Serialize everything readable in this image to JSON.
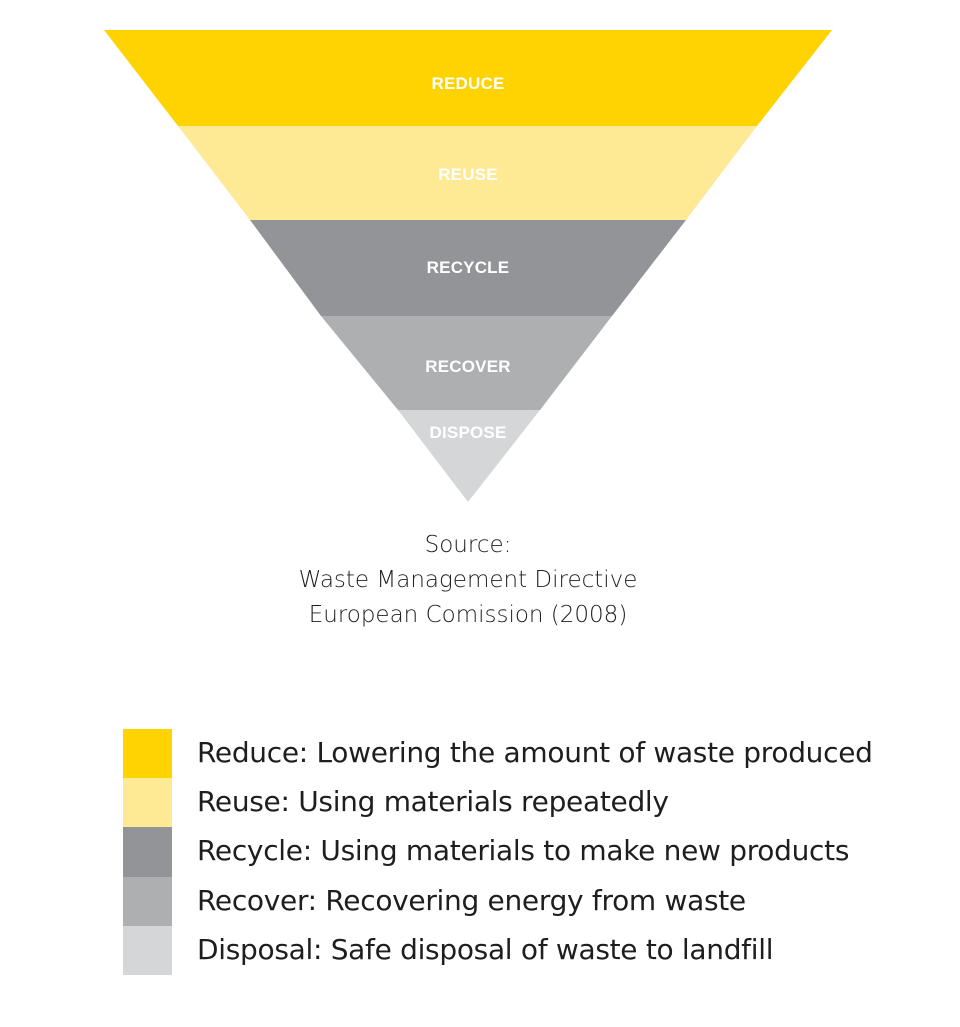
{
  "pyramid": {
    "tiers": [
      {
        "label": "REDUCE",
        "color": "#FFD300"
      },
      {
        "label": "REUSE",
        "color": "#FEE995"
      },
      {
        "label": "RECYCLE",
        "color": "#939497"
      },
      {
        "label": "RECOVER",
        "color": "#AEAFB1"
      },
      {
        "label": "DISPOSE",
        "color": "#D5D6D8"
      }
    ]
  },
  "source": {
    "line1": "Source:",
    "line2": "Waste Management Directive",
    "line3": "European Comission (2008)"
  },
  "legend": {
    "items": [
      {
        "text": "Reduce: Lowering the amount of waste produced",
        "color": "#FFD300"
      },
      {
        "text": "Reuse: Using materials repeatedly",
        "color": "#FEE995"
      },
      {
        "text": "Recycle: Using materials to make new products",
        "color": "#939497"
      },
      {
        "text": "Recover: Recovering energy from waste",
        "color": "#AEAFB1"
      },
      {
        "text": "Disposal: Safe disposal of waste to landfill",
        "color": "#D5D6D8"
      }
    ]
  }
}
